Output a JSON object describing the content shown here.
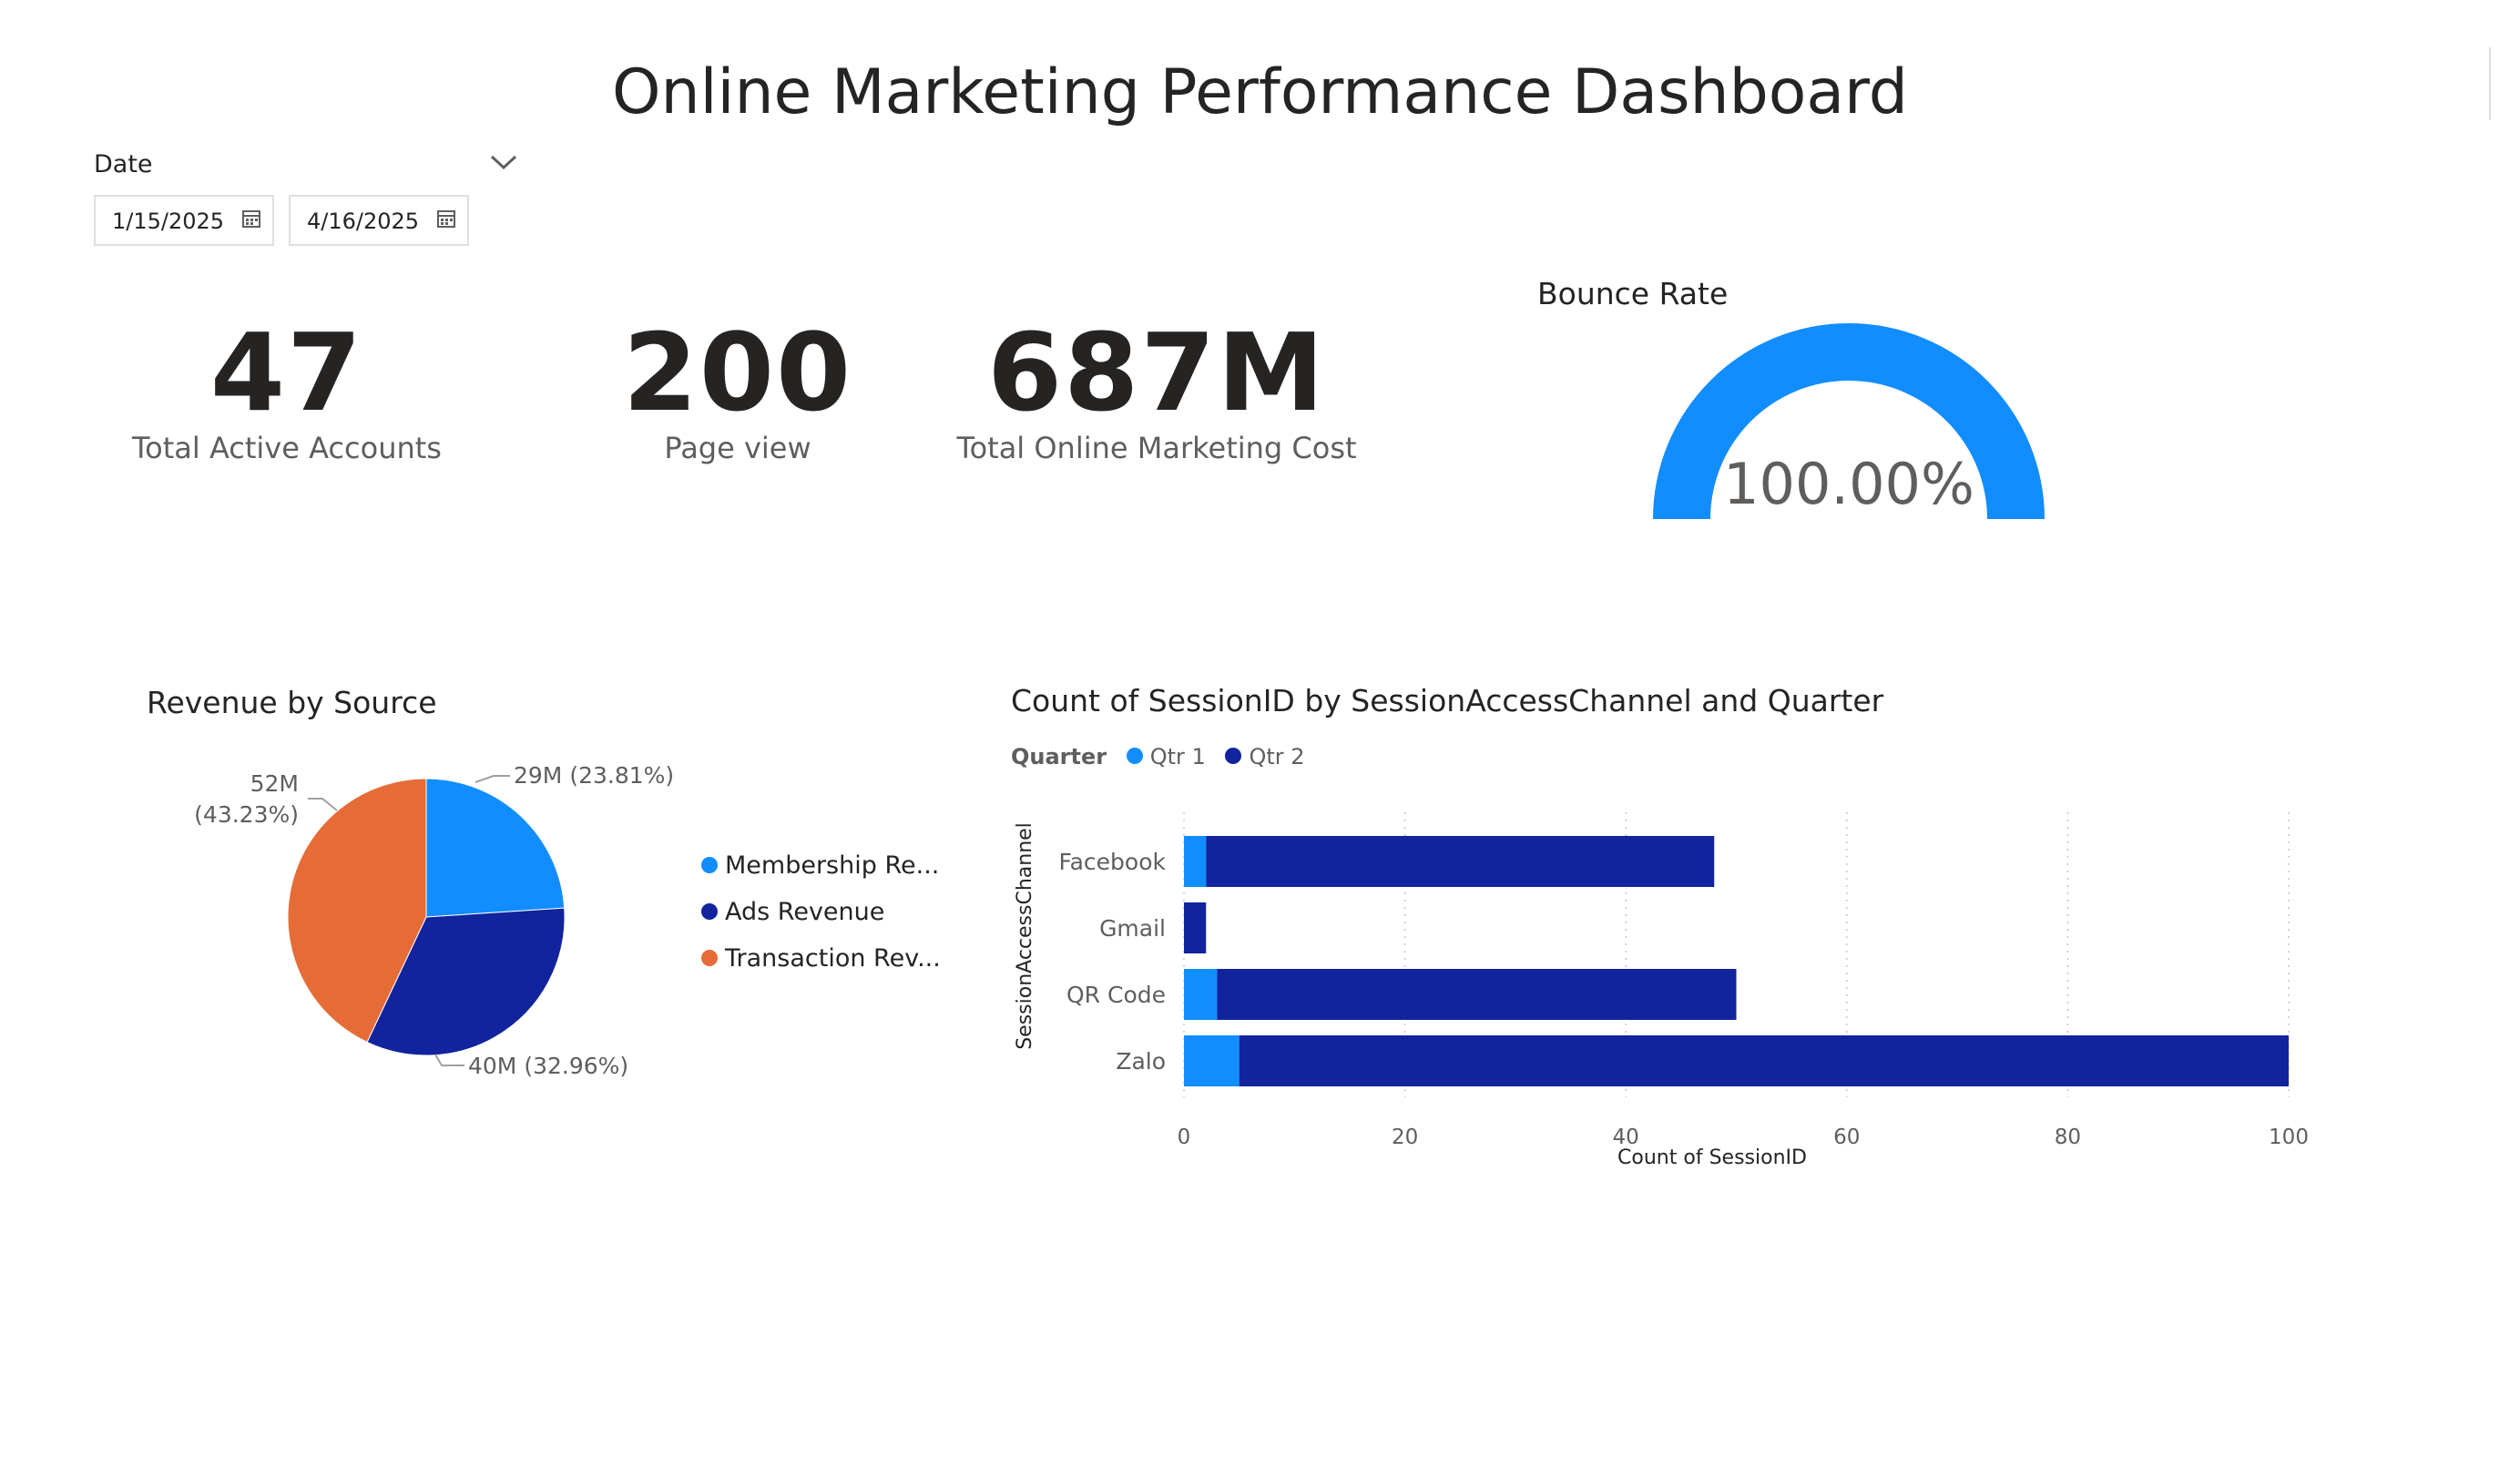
{
  "dashboard_title": "Online Marketing Performance Dashboard",
  "date_filter": {
    "label": "Date",
    "start": "1/15/2025",
    "end": "4/16/2025"
  },
  "kpis": {
    "active_accounts": {
      "value": "47",
      "label": "Total Active Accounts"
    },
    "page_view": {
      "value": "200",
      "label": "Page view"
    },
    "marketing_cost": {
      "value": "687M",
      "label": "Total Online Marketing Cost"
    }
  },
  "bounce_rate": {
    "title": "Bounce Rate",
    "value_text": "100.00%",
    "fraction": 1.0,
    "color": "#118dff"
  },
  "icons": [
    "chevron-down-icon",
    "calendar-icon"
  ],
  "colors": {
    "qtr1": "#118dff",
    "qtr2": "#12239e",
    "transaction": "#e66c37"
  },
  "chart_data": [
    {
      "type": "pie",
      "title": "Revenue by Source",
      "slices": [
        {
          "name": "Membership Revenue",
          "legend_label": "Membership Re...",
          "value": 29,
          "label": "29M (23.81%)",
          "color": "#118dff"
        },
        {
          "name": "Ads Revenue",
          "legend_label": "Ads Revenue",
          "value": 40,
          "label": "40M (32.96%)",
          "color": "#12239e"
        },
        {
          "name": "Transaction Revenue",
          "legend_label": "Transaction Rev...",
          "value": 52,
          "label_line1": "52M",
          "label_line2": "(43.23%)",
          "color": "#e66c37"
        }
      ],
      "legend_placement": "right"
    },
    {
      "type": "bar",
      "orientation": "horizontal",
      "stacked": true,
      "title": "Count of SessionID by SessionAccessChannel and Quarter",
      "legend_title": "Quarter",
      "categories": [
        "Facebook",
        "Gmail",
        "QR Code",
        "Zalo"
      ],
      "series": [
        {
          "name": "Qtr 1",
          "values": [
            2,
            0,
            3,
            5
          ],
          "color": "#118dff"
        },
        {
          "name": "Qtr 2",
          "values": [
            46,
            2,
            47,
            95
          ],
          "color": "#12239e"
        }
      ],
      "xlabel": "Count of SessionID",
      "ylabel": "SessionAccessChannel",
      "xlim": [
        0,
        100
      ],
      "xticks": [
        "0",
        "20",
        "40",
        "60",
        "80",
        "100"
      ],
      "grid": "vertical dotted",
      "legend_placement": "top-left"
    }
  ]
}
